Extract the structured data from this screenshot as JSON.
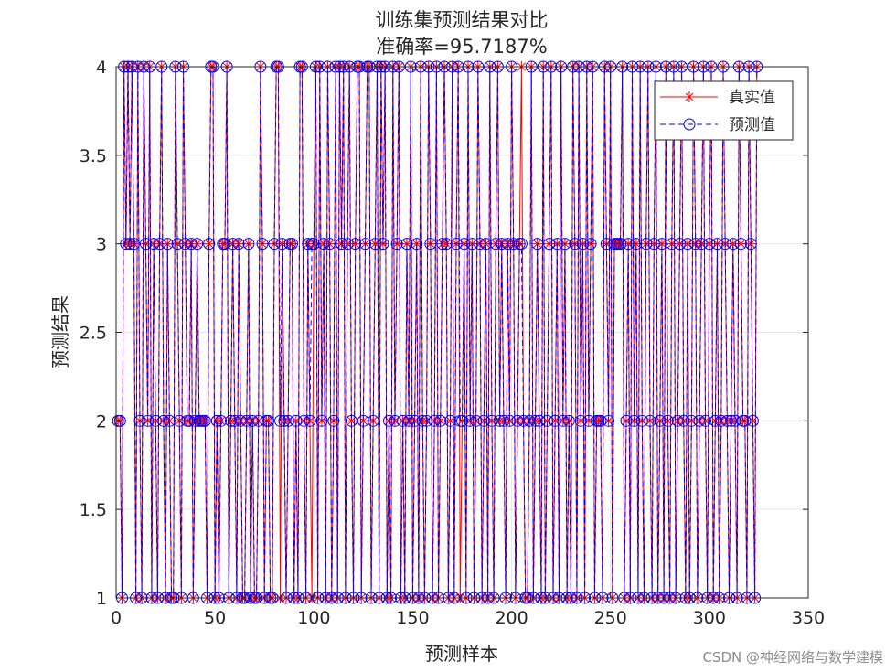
{
  "watermark": "CSDN @神经网络与数学建模",
  "chart_data": {
    "type": "line",
    "title": "训练集预测结果对比",
    "subtitle": "准确率=95.7187%",
    "xlabel": "预测样本",
    "ylabel": "预测结果",
    "xlim": [
      0,
      350
    ],
    "ylim": [
      1,
      4
    ],
    "xticks": [
      "0",
      "50",
      "100",
      "150",
      "200",
      "250",
      "300",
      "350"
    ],
    "yticks": [
      "1",
      "1.5",
      "2",
      "2.5",
      "3",
      "3.5",
      "4"
    ],
    "grid": true,
    "legend_position": "top-right",
    "series": [
      {
        "name": "真实值",
        "color": "#ff0000",
        "style": "solid",
        "marker": "star",
        "values": [
          2,
          2,
          1,
          4,
          3,
          4,
          3,
          4,
          3,
          1,
          4,
          2,
          1,
          4,
          3,
          2,
          4,
          1,
          3,
          2,
          1,
          3,
          4,
          2,
          1,
          3,
          2,
          1,
          1,
          4,
          3,
          2,
          1,
          4,
          3,
          2,
          2,
          3,
          1,
          2,
          3,
          2,
          2,
          2,
          2,
          1,
          3,
          4,
          4,
          1,
          2,
          1,
          2,
          3,
          3,
          4,
          1,
          2,
          3,
          2,
          1,
          3,
          2,
          1,
          1,
          2,
          3,
          1,
          2,
          1,
          1,
          2,
          4,
          3,
          1,
          2,
          2,
          1,
          1,
          3,
          4,
          4,
          1,
          3,
          2,
          1,
          2,
          3,
          3,
          1,
          2,
          1,
          4,
          4,
          2,
          1,
          3,
          2,
          1,
          3,
          4,
          1,
          4,
          2,
          3,
          1,
          4,
          3,
          1,
          2,
          4,
          1,
          4,
          3,
          4,
          1,
          3,
          4,
          2,
          1,
          3,
          4,
          4,
          1,
          2,
          3,
          4,
          4,
          1,
          2,
          3,
          4,
          1,
          4,
          3,
          4,
          1,
          2,
          1,
          4,
          2,
          3,
          4,
          1,
          2,
          1,
          3,
          2,
          4,
          1,
          2,
          3,
          1,
          4,
          2,
          1,
          2,
          4,
          3,
          1,
          2,
          4,
          1,
          2,
          3,
          4,
          3,
          1,
          2,
          4,
          1,
          3,
          4,
          1,
          2,
          3,
          1,
          4,
          2,
          3,
          1,
          2,
          4,
          3,
          1,
          2,
          3,
          1,
          4,
          2,
          1,
          3,
          4,
          2,
          3,
          2,
          1,
          3,
          2,
          4,
          3,
          1,
          2,
          3,
          4,
          2,
          1,
          1,
          2,
          4,
          1,
          2,
          3,
          2,
          1,
          4,
          1,
          2,
          3,
          4,
          1,
          2,
          3,
          1,
          4,
          2,
          3,
          1,
          2,
          1,
          4,
          3,
          1,
          4,
          2,
          3,
          1,
          4,
          2,
          3,
          4,
          1,
          2,
          2,
          2,
          1,
          4,
          3,
          2,
          4,
          1,
          3,
          3,
          3,
          3,
          4,
          1,
          2,
          3,
          1,
          4,
          2,
          3,
          1,
          4,
          2,
          1,
          3,
          4,
          2,
          1,
          3,
          4,
          1,
          2,
          3,
          1,
          4,
          2,
          1,
          3,
          4,
          1,
          2,
          3,
          4,
          2,
          1,
          3,
          1,
          2,
          4,
          3,
          1,
          2,
          3,
          4,
          2,
          1,
          3,
          4,
          1,
          2,
          3,
          1,
          2,
          4,
          3,
          2,
          1,
          2,
          3,
          2,
          1,
          4,
          3,
          2,
          2,
          1,
          4,
          3,
          2,
          1,
          4
        ]
      },
      {
        "name": "预测值",
        "color": "#0000ff",
        "style": "dashed",
        "marker": "circle",
        "values": [
          2,
          2,
          1,
          4,
          3,
          4,
          3,
          4,
          3,
          1,
          4,
          2,
          1,
          4,
          3,
          2,
          4,
          1,
          3,
          2,
          1,
          3,
          4,
          2,
          1,
          3,
          2,
          1,
          1,
          4,
          3,
          2,
          1,
          4,
          3,
          2,
          2,
          3,
          1,
          2,
          3,
          2,
          2,
          2,
          2,
          1,
          3,
          4,
          4,
          1,
          2,
          1,
          2,
          3,
          3,
          4,
          1,
          2,
          3,
          2,
          1,
          3,
          2,
          1,
          1,
          2,
          3,
          1,
          2,
          1,
          1,
          2,
          4,
          3,
          1,
          2,
          2,
          1,
          1,
          3,
          4,
          4,
          2,
          3,
          2,
          1,
          2,
          3,
          3,
          1,
          2,
          1,
          4,
          4,
          2,
          1,
          3,
          2,
          3,
          3,
          4,
          1,
          4,
          2,
          3,
          1,
          4,
          3,
          1,
          2,
          4,
          1,
          4,
          3,
          4,
          1,
          3,
          4,
          2,
          1,
          3,
          4,
          4,
          1,
          2,
          3,
          4,
          4,
          1,
          2,
          3,
          4,
          1,
          4,
          3,
          4,
          1,
          2,
          1,
          4,
          2,
          3,
          4,
          1,
          2,
          1,
          3,
          2,
          4,
          1,
          2,
          3,
          1,
          4,
          2,
          1,
          2,
          4,
          3,
          1,
          2,
          4,
          1,
          2,
          3,
          4,
          3,
          1,
          2,
          4,
          1,
          3,
          4,
          2,
          2,
          3,
          1,
          4,
          2,
          3,
          1,
          2,
          4,
          3,
          1,
          2,
          3,
          1,
          4,
          2,
          1,
          3,
          4,
          2,
          3,
          2,
          1,
          3,
          2,
          4,
          3,
          1,
          2,
          3,
          3,
          2,
          1,
          1,
          2,
          4,
          1,
          2,
          3,
          2,
          1,
          4,
          1,
          2,
          3,
          4,
          1,
          2,
          3,
          1,
          4,
          2,
          3,
          1,
          2,
          1,
          4,
          3,
          1,
          4,
          2,
          3,
          1,
          4,
          2,
          3,
          4,
          1,
          2,
          2,
          2,
          1,
          4,
          3,
          2,
          4,
          1,
          3,
          3,
          3,
          3,
          4,
          1,
          2,
          3,
          1,
          4,
          2,
          3,
          1,
          4,
          2,
          1,
          3,
          4,
          2,
          1,
          3,
          4,
          1,
          2,
          3,
          1,
          4,
          2,
          1,
          3,
          4,
          1,
          2,
          3,
          4,
          2,
          1,
          3,
          1,
          2,
          4,
          3,
          1,
          2,
          3,
          4,
          2,
          1,
          3,
          4,
          1,
          2,
          3,
          1,
          2,
          4,
          3,
          2,
          1,
          2,
          3,
          2,
          1,
          4,
          3,
          2,
          2,
          1,
          4,
          3,
          2,
          1,
          4
        ]
      }
    ]
  }
}
